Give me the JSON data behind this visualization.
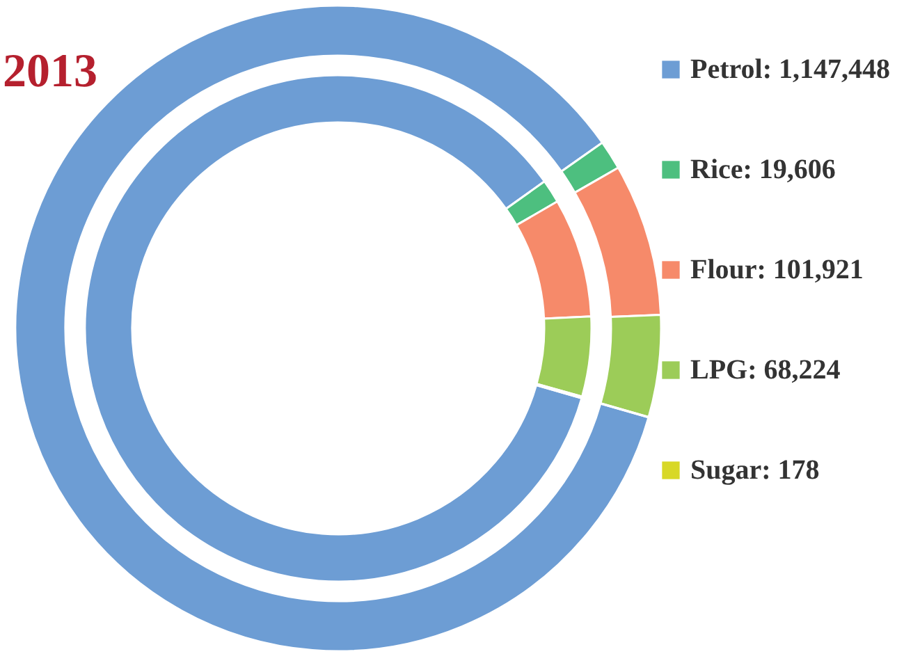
{
  "chart_data": {
    "type": "donut",
    "title": "2013",
    "categories": [
      "Petrol",
      "Rice",
      "Flour",
      "LPG",
      "Sugar"
    ],
    "colors": [
      "#6d9dd4",
      "#4dbf7f",
      "#f68a6a",
      "#9ccc58",
      "#d8d826"
    ],
    "series": [
      {
        "values": [
          1147448,
          19606,
          101921,
          68224,
          178
        ],
        "value_labels": [
          "1,147,448",
          "19,606",
          "101,921",
          "68,224",
          "178"
        ]
      },
      {
        "values": [
          85.7,
          1.5,
          7.6,
          5.1,
          0.1
        ]
      }
    ],
    "legend": "right"
  }
}
